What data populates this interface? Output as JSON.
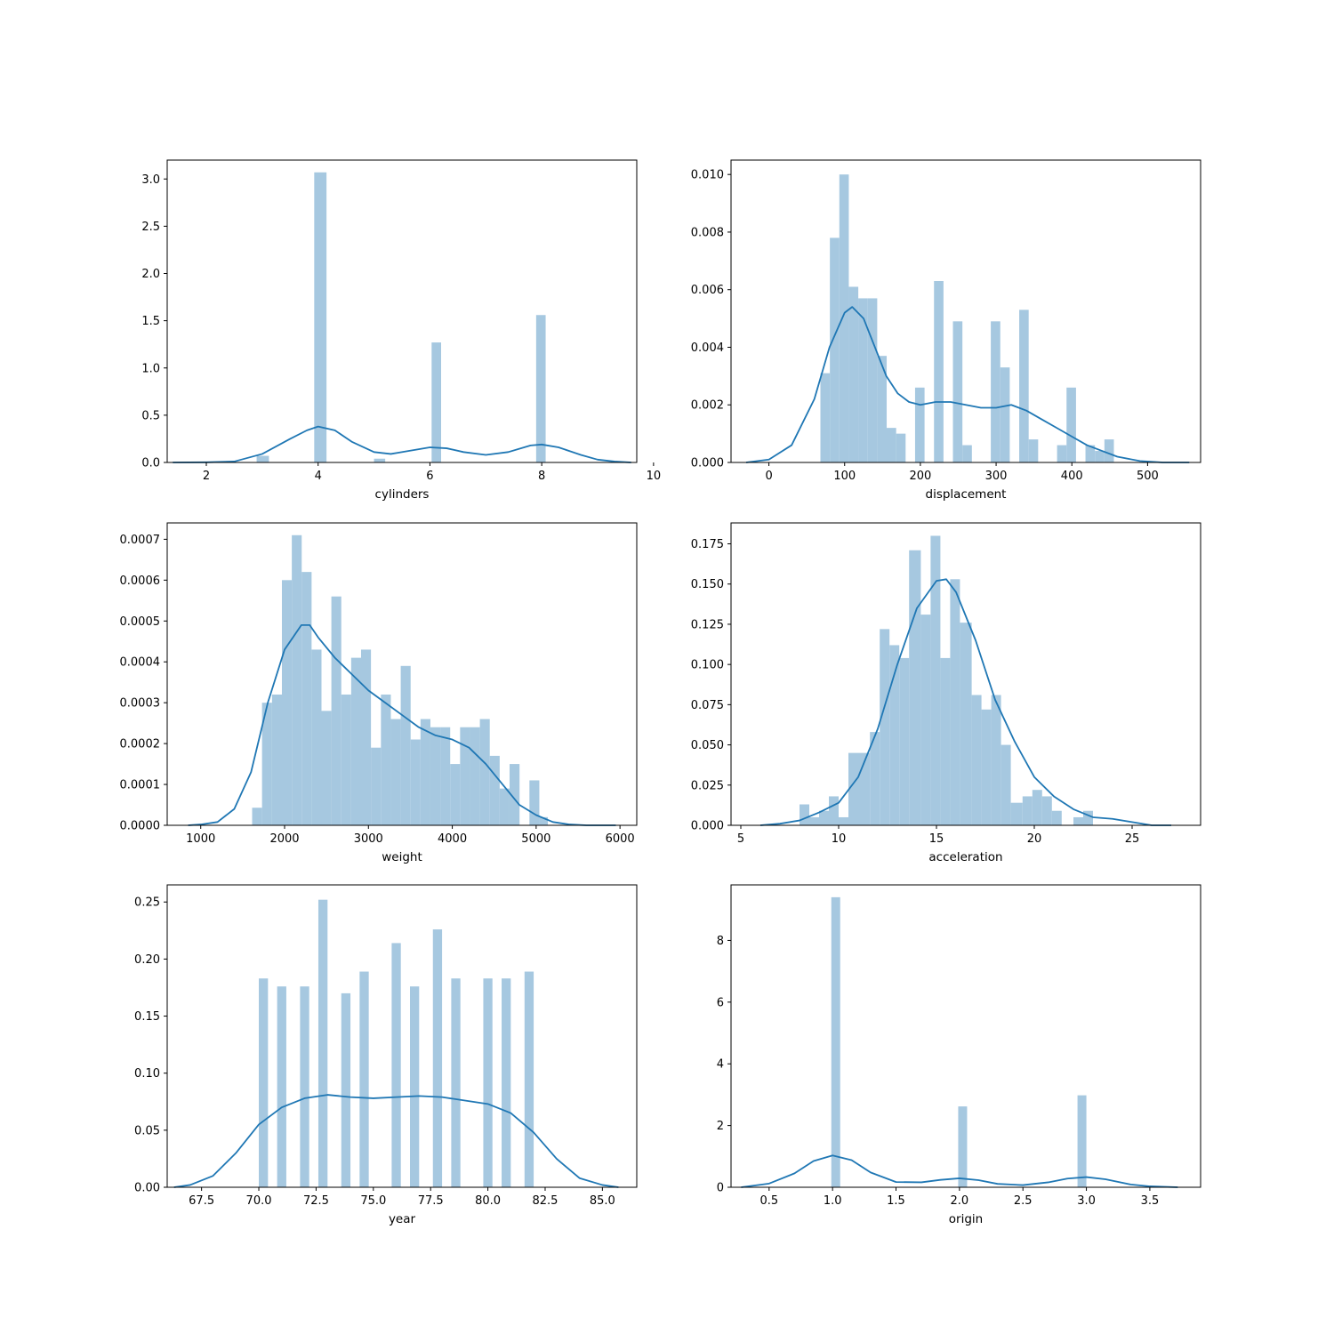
{
  "colors": {
    "bar": "#a6c8e0",
    "kde": "#1f77b4",
    "frame": "#000000"
  },
  "chart_data": [
    {
      "type": "bar",
      "xlabel": "cylinders",
      "ylabel": "",
      "xlim": [
        1.3,
        9.7
      ],
      "ylim": [
        0,
        3.2
      ],
      "xticks": [
        2,
        4,
        6,
        8,
        10
      ],
      "xtick_labels": [
        "2",
        "4",
        "6",
        "8",
        "10"
      ],
      "yticks": [
        0,
        0.5,
        1.0,
        1.5,
        2.0,
        2.5,
        3.0
      ],
      "ytick_labels": [
        "0.0",
        "0.5",
        "1.0",
        "1.5",
        "2.0",
        "2.5",
        "3.0"
      ],
      "bins": [
        [
          2.9,
          3.12,
          0.07
        ],
        [
          3.93,
          4.15,
          3.07
        ],
        [
          5.0,
          5.2,
          0.04
        ],
        [
          6.03,
          6.2,
          1.27
        ],
        [
          7.9,
          8.07,
          1.56
        ]
      ],
      "kde": [
        [
          1.4,
          0.0
        ],
        [
          2.0,
          0.002
        ],
        [
          2.5,
          0.01
        ],
        [
          3.0,
          0.09
        ],
        [
          3.5,
          0.25
        ],
        [
          3.8,
          0.34
        ],
        [
          4.0,
          0.38
        ],
        [
          4.3,
          0.34
        ],
        [
          4.6,
          0.22
        ],
        [
          5.0,
          0.11
        ],
        [
          5.3,
          0.09
        ],
        [
          5.6,
          0.12
        ],
        [
          6.0,
          0.16
        ],
        [
          6.3,
          0.15
        ],
        [
          6.6,
          0.11
        ],
        [
          7.0,
          0.08
        ],
        [
          7.4,
          0.11
        ],
        [
          7.8,
          0.18
        ],
        [
          8.0,
          0.19
        ],
        [
          8.3,
          0.16
        ],
        [
          8.7,
          0.08
        ],
        [
          9.0,
          0.03
        ],
        [
          9.3,
          0.01
        ],
        [
          9.6,
          0.0
        ]
      ]
    },
    {
      "type": "bar",
      "xlabel": "displacement",
      "ylabel": "",
      "xlim": [
        -50,
        570
      ],
      "ylim": [
        0,
        0.0105
      ],
      "xticks": [
        0,
        100,
        200,
        300,
        400,
        500
      ],
      "xtick_labels": [
        "0",
        "100",
        "200",
        "300",
        "400",
        "500"
      ],
      "yticks": [
        0,
        0.002,
        0.004,
        0.006,
        0.008,
        0.01
      ],
      "ytick_labels": [
        "0.000",
        "0.002",
        "0.004",
        "0.006",
        "0.008",
        "0.010"
      ],
      "bins": [
        [
          68,
          80.5,
          0.0031
        ],
        [
          80.5,
          93,
          0.0078
        ],
        [
          93,
          105.5,
          0.01
        ],
        [
          105.5,
          118,
          0.0061
        ],
        [
          118,
          130.5,
          0.0057
        ],
        [
          130.5,
          143,
          0.0057
        ],
        [
          143,
          155.5,
          0.0037
        ],
        [
          155.5,
          168,
          0.0012
        ],
        [
          168,
          180.5,
          0.001
        ],
        [
          193,
          205.5,
          0.0026
        ],
        [
          218,
          230.5,
          0.0063
        ],
        [
          243,
          255.5,
          0.0049
        ],
        [
          255.5,
          268,
          0.0006
        ],
        [
          293,
          305.5,
          0.0049
        ],
        [
          305.5,
          318,
          0.0033
        ],
        [
          330.5,
          343,
          0.0053
        ],
        [
          343,
          355.5,
          0.0008
        ],
        [
          380.5,
          393,
          0.0006
        ],
        [
          393,
          405.5,
          0.0026
        ],
        [
          418,
          430.5,
          0.0006
        ],
        [
          430.5,
          443,
          0.0004
        ],
        [
          443,
          455.5,
          0.0008
        ]
      ],
      "kde": [
        [
          -30,
          0.0
        ],
        [
          0,
          0.0001
        ],
        [
          30,
          0.0006
        ],
        [
          60,
          0.0022
        ],
        [
          80,
          0.004
        ],
        [
          100,
          0.0052
        ],
        [
          110,
          0.0054
        ],
        [
          125,
          0.005
        ],
        [
          140,
          0.004
        ],
        [
          155,
          0.003
        ],
        [
          170,
          0.0024
        ],
        [
          185,
          0.0021
        ],
        [
          200,
          0.002
        ],
        [
          220,
          0.0021
        ],
        [
          240,
          0.0021
        ],
        [
          260,
          0.002
        ],
        [
          280,
          0.0019
        ],
        [
          300,
          0.0019
        ],
        [
          320,
          0.002
        ],
        [
          340,
          0.0018
        ],
        [
          360,
          0.0015
        ],
        [
          380,
          0.0012
        ],
        [
          400,
          0.0009
        ],
        [
          420,
          0.0006
        ],
        [
          440,
          0.0004
        ],
        [
          460,
          0.0002
        ],
        [
          490,
          5e-05
        ],
        [
          520,
          0.0
        ],
        [
          555,
          0.0
        ]
      ]
    },
    {
      "type": "bar",
      "xlabel": "weight",
      "ylabel": "",
      "xlim": [
        600,
        6200
      ],
      "ylim": [
        0,
        0.00074
      ],
      "xticks": [
        1000,
        2000,
        3000,
        4000,
        5000,
        6000
      ],
      "xtick_labels": [
        "1000",
        "2000",
        "3000",
        "4000",
        "5000",
        "6000"
      ],
      "yticks": [
        0,
        0.0001,
        0.0002,
        0.0003,
        0.0004,
        0.0005,
        0.0006,
        0.0007
      ],
      "ytick_labels": [
        "0.0000",
        "0.0001",
        "0.0002",
        "0.0003",
        "0.0004",
        "0.0005",
        "0.0006",
        "0.0007"
      ],
      "bins": [
        [
          1613,
          1731,
          4.3e-05
        ],
        [
          1731,
          1850,
          0.0003
        ],
        [
          1850,
          1968,
          0.00032
        ],
        [
          1968,
          2086,
          0.0006
        ],
        [
          2086,
          2204,
          0.00071
        ],
        [
          2204,
          2322,
          0.00062
        ],
        [
          2322,
          2440,
          0.00043
        ],
        [
          2440,
          2558,
          0.00028
        ],
        [
          2558,
          2676,
          0.00056
        ],
        [
          2676,
          2794,
          0.00032
        ],
        [
          2794,
          2912,
          0.00041
        ],
        [
          2912,
          3030,
          0.00043
        ],
        [
          3030,
          3149,
          0.00019
        ],
        [
          3149,
          3267,
          0.00032
        ],
        [
          3267,
          3385,
          0.00026
        ],
        [
          3385,
          3503,
          0.00039
        ],
        [
          3503,
          3621,
          0.00021
        ],
        [
          3621,
          3739,
          0.00026
        ],
        [
          3739,
          3857,
          0.00024
        ],
        [
          3857,
          3975,
          0.00024
        ],
        [
          3975,
          4093,
          0.00015
        ],
        [
          4093,
          4211,
          0.00024
        ],
        [
          4211,
          4329,
          0.00024
        ],
        [
          4329,
          4447,
          0.00026
        ],
        [
          4447,
          4565,
          0.00017
        ],
        [
          4565,
          4683,
          9e-05
        ],
        [
          4683,
          4802,
          0.00015
        ],
        [
          4920,
          5038,
          0.00011
        ],
        [
          5038,
          5140,
          2e-05
        ]
      ],
      "kde": [
        [
          850,
          0.0
        ],
        [
          1000,
          2e-06
        ],
        [
          1200,
          8e-06
        ],
        [
          1400,
          4e-05
        ],
        [
          1600,
          0.00013
        ],
        [
          1800,
          0.0003
        ],
        [
          2000,
          0.00043
        ],
        [
          2200,
          0.00049
        ],
        [
          2300,
          0.00049
        ],
        [
          2400,
          0.00046
        ],
        [
          2600,
          0.00041
        ],
        [
          2800,
          0.00037
        ],
        [
          3000,
          0.00033
        ],
        [
          3200,
          0.0003
        ],
        [
          3400,
          0.00027
        ],
        [
          3600,
          0.00024
        ],
        [
          3800,
          0.00022
        ],
        [
          4000,
          0.00021
        ],
        [
          4200,
          0.00019
        ],
        [
          4400,
          0.00015
        ],
        [
          4600,
          0.0001
        ],
        [
          4800,
          5e-05
        ],
        [
          5000,
          2.5e-05
        ],
        [
          5200,
          8e-06
        ],
        [
          5400,
          2e-06
        ],
        [
          5600,
          0.0
        ],
        [
          5950,
          0.0
        ]
      ]
    },
    {
      "type": "bar",
      "xlabel": "acceleration",
      "ylabel": "",
      "xlim": [
        4.5,
        28.5
      ],
      "ylim": [
        0,
        0.188
      ],
      "xticks": [
        5,
        10,
        15,
        20,
        25
      ],
      "xtick_labels": [
        "5",
        "10",
        "15",
        "20",
        "25"
      ],
      "yticks": [
        0,
        0.025,
        0.05,
        0.075,
        0.1,
        0.125,
        0.15,
        0.175
      ],
      "ytick_labels": [
        "0.000",
        "0.025",
        "0.050",
        "0.075",
        "0.100",
        "0.125",
        "0.150",
        "0.175"
      ],
      "bins": [
        [
          8.0,
          8.5,
          0.013
        ],
        [
          8.5,
          9.0,
          0.005
        ],
        [
          9.0,
          9.5,
          0.009
        ],
        [
          9.5,
          10.0,
          0.018
        ],
        [
          10.0,
          10.5,
          0.005
        ],
        [
          10.5,
          11.0,
          0.045
        ],
        [
          11.0,
          11.6,
          0.045
        ],
        [
          11.6,
          12.1,
          0.058
        ],
        [
          12.1,
          12.6,
          0.122
        ],
        [
          12.6,
          13.1,
          0.112
        ],
        [
          13.1,
          13.6,
          0.104
        ],
        [
          13.6,
          14.2,
          0.171
        ],
        [
          14.2,
          14.7,
          0.131
        ],
        [
          14.7,
          15.2,
          0.18
        ],
        [
          15.2,
          15.7,
          0.104
        ],
        [
          15.7,
          16.2,
          0.153
        ],
        [
          16.2,
          16.8,
          0.126
        ],
        [
          16.8,
          17.3,
          0.081
        ],
        [
          17.3,
          17.8,
          0.072
        ],
        [
          17.8,
          18.3,
          0.081
        ],
        [
          18.3,
          18.8,
          0.05
        ],
        [
          18.8,
          19.4,
          0.014
        ],
        [
          19.4,
          19.9,
          0.018
        ],
        [
          19.9,
          20.4,
          0.022
        ],
        [
          20.4,
          20.9,
          0.018
        ],
        [
          20.9,
          21.4,
          0.009
        ],
        [
          22.0,
          22.5,
          0.005
        ],
        [
          22.5,
          23.0,
          0.009
        ]
      ],
      "kde": [
        [
          6.0,
          0.0
        ],
        [
          7.0,
          0.001
        ],
        [
          8.0,
          0.003
        ],
        [
          9.0,
          0.008
        ],
        [
          10.0,
          0.014
        ],
        [
          11.0,
          0.03
        ],
        [
          12.0,
          0.06
        ],
        [
          13.0,
          0.1
        ],
        [
          14.0,
          0.135
        ],
        [
          15.0,
          0.152
        ],
        [
          15.5,
          0.153
        ],
        [
          16.0,
          0.145
        ],
        [
          17.0,
          0.115
        ],
        [
          18.0,
          0.078
        ],
        [
          19.0,
          0.052
        ],
        [
          20.0,
          0.03
        ],
        [
          21.0,
          0.018
        ],
        [
          22.0,
          0.01
        ],
        [
          23.0,
          0.005
        ],
        [
          24.0,
          0.004
        ],
        [
          25.0,
          0.002
        ],
        [
          26.0,
          0.0
        ],
        [
          27.0,
          0.0
        ]
      ]
    },
    {
      "type": "bar",
      "xlabel": "year",
      "ylabel": "",
      "xlim": [
        66.0,
        86.5
      ],
      "ylim": [
        0,
        0.265
      ],
      "xticks": [
        67.5,
        70.0,
        72.5,
        75.0,
        77.5,
        80.0,
        82.5,
        85.0
      ],
      "xtick_labels": [
        "67.5",
        "70.0",
        "72.5",
        "75.0",
        "77.5",
        "80.0",
        "82.5",
        "85.0"
      ],
      "yticks": [
        0,
        0.05,
        0.1,
        0.15,
        0.2,
        0.25
      ],
      "ytick_labels": [
        "0.00",
        "0.05",
        "0.10",
        "0.15",
        "0.20",
        "0.25"
      ],
      "bins": [
        [
          70.0,
          70.4,
          0.183
        ],
        [
          70.8,
          71.2,
          0.176
        ],
        [
          71.8,
          72.2,
          0.176
        ],
        [
          72.6,
          73.0,
          0.252
        ],
        [
          73.6,
          74.0,
          0.17
        ],
        [
          74.4,
          74.8,
          0.189
        ],
        [
          75.8,
          76.2,
          0.214
        ],
        [
          76.6,
          77.0,
          0.176
        ],
        [
          77.6,
          78.0,
          0.226
        ],
        [
          78.4,
          78.8,
          0.183
        ],
        [
          79.8,
          80.2,
          0.183
        ],
        [
          80.6,
          81.0,
          0.183
        ],
        [
          81.6,
          82.0,
          0.189
        ]
      ],
      "kde": [
        [
          66.3,
          0.0
        ],
        [
          67.0,
          0.002
        ],
        [
          68.0,
          0.01
        ],
        [
          69.0,
          0.03
        ],
        [
          70.0,
          0.055
        ],
        [
          71.0,
          0.07
        ],
        [
          72.0,
          0.078
        ],
        [
          73.0,
          0.081
        ],
        [
          74.0,
          0.079
        ],
        [
          75.0,
          0.078
        ],
        [
          76.0,
          0.079
        ],
        [
          77.0,
          0.08
        ],
        [
          78.0,
          0.079
        ],
        [
          79.0,
          0.076
        ],
        [
          80.0,
          0.073
        ],
        [
          81.0,
          0.065
        ],
        [
          82.0,
          0.048
        ],
        [
          83.0,
          0.025
        ],
        [
          84.0,
          0.008
        ],
        [
          85.0,
          0.002
        ],
        [
          85.7,
          0.0
        ]
      ]
    },
    {
      "type": "bar",
      "xlabel": "origin",
      "ylabel": "",
      "xlim": [
        0.2,
        3.9
      ],
      "ylim": [
        0,
        9.8
      ],
      "xticks": [
        0.5,
        1.0,
        1.5,
        2.0,
        2.5,
        3.0,
        3.5
      ],
      "xtick_labels": [
        "0.5",
        "1.0",
        "1.5",
        "2.0",
        "2.5",
        "3.0",
        "3.5"
      ],
      "yticks": [
        0,
        2,
        4,
        6,
        8
      ],
      "ytick_labels": [
        "0",
        "2",
        "4",
        "6",
        "8"
      ],
      "bins": [
        [
          0.99,
          1.06,
          9.4
        ],
        [
          1.99,
          2.06,
          2.62
        ],
        [
          2.93,
          3.0,
          2.98
        ]
      ],
      "kde": [
        [
          0.28,
          0.0
        ],
        [
          0.5,
          0.12
        ],
        [
          0.7,
          0.45
        ],
        [
          0.85,
          0.85
        ],
        [
          1.0,
          1.03
        ],
        [
          1.15,
          0.88
        ],
        [
          1.3,
          0.48
        ],
        [
          1.5,
          0.17
        ],
        [
          1.7,
          0.16
        ],
        [
          1.85,
          0.24
        ],
        [
          2.0,
          0.29
        ],
        [
          2.15,
          0.23
        ],
        [
          2.3,
          0.11
        ],
        [
          2.5,
          0.07
        ],
        [
          2.7,
          0.16
        ],
        [
          2.85,
          0.28
        ],
        [
          3.0,
          0.33
        ],
        [
          3.15,
          0.26
        ],
        [
          3.35,
          0.09
        ],
        [
          3.5,
          0.03
        ],
        [
          3.72,
          0.0
        ]
      ]
    }
  ]
}
